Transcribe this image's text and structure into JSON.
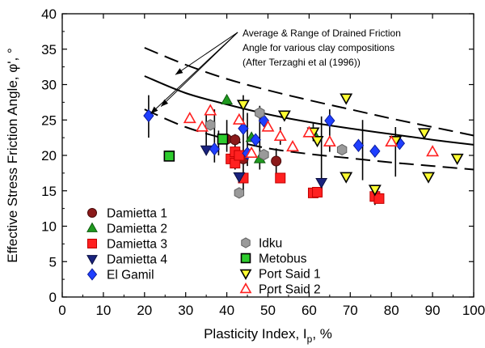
{
  "chart_data": {
    "type": "scatter",
    "xlabel": "Plasticity Index, I",
    "xlabel_sub": "p",
    "xlabel_suffix": ", %",
    "ylabel": "Effective Stress Friction Angle, φ', °",
    "xlim": [
      0,
      100
    ],
    "ylim": [
      0,
      40
    ],
    "xticks": [
      0,
      10,
      20,
      30,
      40,
      50,
      60,
      70,
      80,
      90,
      100
    ],
    "yticks": [
      0,
      5,
      10,
      15,
      20,
      25,
      30,
      35,
      40
    ],
    "grid": false,
    "annotation": {
      "lines": [
        "Average & Range of  Drained Friction",
        "Angle for various clay compositions",
        "(After Terzaghi et al (1996))"
      ]
    },
    "curves": [
      {
        "name": "upper",
        "style": "dashed",
        "x": [
          20,
          30,
          40,
          50,
          60,
          70,
          80,
          90,
          100
        ],
        "y": [
          35.2,
          32.8,
          30.8,
          29.2,
          27.8,
          26.5,
          25.2,
          24.0,
          22.8
        ]
      },
      {
        "name": "average",
        "style": "solid",
        "x": [
          20,
          30,
          40,
          50,
          60,
          70,
          80,
          90,
          100
        ],
        "y": [
          31.2,
          28.8,
          27.2,
          25.8,
          24.7,
          23.8,
          23.0,
          22.2,
          21.5
        ]
      },
      {
        "name": "lower",
        "style": "dashed",
        "x": [
          20,
          30,
          40,
          50,
          60,
          70,
          80,
          90,
          100
        ],
        "y": [
          26.5,
          24.0,
          22.3,
          21.0,
          20.2,
          19.6,
          19.0,
          18.5,
          18.0
        ]
      }
    ],
    "series": [
      {
        "name": "Damietta 1",
        "marker": "circle",
        "color": "#8B1A1A",
        "stroke": "#4a0a0a",
        "points": [
          [
            40,
            22.3
          ],
          [
            42,
            22.2
          ],
          [
            44,
            19.5
          ],
          [
            52,
            19.2
          ]
        ]
      },
      {
        "name": "Damietta 2",
        "marker": "triangle-up",
        "color": "#1f9a1f",
        "stroke": "#0d5a0d",
        "points": [
          [
            40,
            27.8
          ],
          [
            46,
            22.5
          ],
          [
            48,
            19.5
          ],
          [
            61,
            23.2
          ]
        ]
      },
      {
        "name": "Damietta 3",
        "marker": "square",
        "color": "#ff2020",
        "stroke": "#c00000",
        "points": [
          [
            41,
            19.5
          ],
          [
            42,
            20.5
          ],
          [
            42,
            18.9
          ],
          [
            43,
            20.0
          ],
          [
            44,
            16.8
          ],
          [
            53,
            16.8
          ],
          [
            61,
            14.7
          ],
          [
            62,
            14.8
          ],
          [
            76,
            14.2
          ],
          [
            77,
            13.9
          ]
        ]
      },
      {
        "name": "Damietta 4",
        "marker": "triangle-down",
        "color": "#1a237e",
        "stroke": "#0a0f40",
        "points": [
          [
            35,
            20.8
          ],
          [
            43,
            17.0
          ],
          [
            63,
            16.2
          ]
        ]
      },
      {
        "name": "El Gamil",
        "marker": "diamond",
        "color": "#1f3fff",
        "stroke": "#0a1a99",
        "points": [
          [
            21,
            25.6
          ],
          [
            37,
            20.9
          ],
          [
            44,
            23.8
          ],
          [
            45,
            20.3
          ],
          [
            47,
            22.2
          ],
          [
            49,
            24.9
          ],
          [
            65,
            24.9
          ],
          [
            72,
            21.4
          ],
          [
            76,
            20.6
          ],
          [
            82,
            21.7
          ]
        ]
      },
      {
        "name": "Idku",
        "marker": "hexagon",
        "color": "#9a9a9a",
        "stroke": "#606060",
        "points": [
          [
            36,
            24.3
          ],
          [
            43,
            14.7
          ],
          [
            48,
            26.0
          ],
          [
            49,
            20.1
          ],
          [
            68,
            20.8
          ]
        ]
      },
      {
        "name": "Metobus",
        "marker": "square-open",
        "color": "#2ecc2e",
        "stroke": "#000000",
        "points": [
          [
            26,
            19.9
          ],
          [
            39,
            22.3
          ]
        ]
      },
      {
        "name": "Port Said 1",
        "marker": "triangle-down-open",
        "color": "#ffff33",
        "stroke": "#000000",
        "points": [
          [
            44,
            27.2
          ],
          [
            54,
            25.7
          ],
          [
            61,
            23.3
          ],
          [
            62,
            22.1
          ],
          [
            69,
            28.1
          ],
          [
            69,
            17.0
          ],
          [
            76,
            15.2
          ],
          [
            81,
            22.1
          ],
          [
            88,
            23.2
          ],
          [
            89,
            17.0
          ],
          [
            96,
            19.6
          ]
        ]
      },
      {
        "name": "Port Said 2",
        "marker": "triangle-up-open",
        "color": "#ffffff",
        "stroke": "#ff2020",
        "points": [
          [
            31,
            25.2
          ],
          [
            34,
            24.0
          ],
          [
            36,
            26.3
          ],
          [
            43,
            25.0
          ],
          [
            46,
            20.3
          ],
          [
            50,
            24.0
          ],
          [
            53,
            22.7
          ],
          [
            56,
            21.2
          ],
          [
            60,
            23.2
          ],
          [
            65,
            21.9
          ],
          [
            80,
            21.9
          ],
          [
            90,
            20.5
          ]
        ]
      }
    ],
    "error_bars": [
      {
        "x": 21,
        "lo": 22.5,
        "hi": 28.5
      },
      {
        "x": 35,
        "lo": 21.0,
        "hi": 26.0
      },
      {
        "x": 37,
        "lo": 19.0,
        "hi": 26.5
      },
      {
        "x": 38,
        "lo": 20.0,
        "hi": 23.5
      },
      {
        "x": 40,
        "lo": 20.5,
        "hi": 25.0
      },
      {
        "x": 42,
        "lo": 18.0,
        "hi": 23.0
      },
      {
        "x": 44,
        "lo": 15.0,
        "hi": 28.5
      },
      {
        "x": 45,
        "lo": 18.5,
        "hi": 26.0
      },
      {
        "x": 48,
        "lo": 18.0,
        "hi": 27.0
      },
      {
        "x": 52,
        "lo": 17.5,
        "hi": 21.0
      },
      {
        "x": 53,
        "lo": 21.5,
        "hi": 24.0
      },
      {
        "x": 61,
        "lo": 22.0,
        "hi": 24.5
      },
      {
        "x": 63,
        "lo": 16.0,
        "hi": 25.5
      },
      {
        "x": 65,
        "lo": 20.5,
        "hi": 26.5
      },
      {
        "x": 73,
        "lo": 16.5,
        "hi": 25.0
      },
      {
        "x": 76,
        "lo": 13.0,
        "hi": 15.8
      },
      {
        "x": 81,
        "lo": 17.0,
        "hi": 24.0
      }
    ],
    "legend_left": [
      "Damietta 1",
      "Damietta 2",
      "Damietta 3",
      "Damietta 4",
      "El Gamil"
    ],
    "legend_right": [
      "Idku",
      "Metobus",
      "Port Said 1",
      "Port Said 2"
    ]
  }
}
